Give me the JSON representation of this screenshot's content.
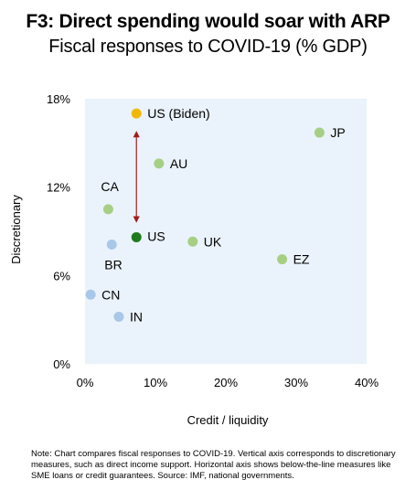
{
  "header": {
    "title": "F3: Direct spending would soar with ARP",
    "subtitle": "Fiscal responses to COVID-19 (% GDP)"
  },
  "chart_data": {
    "type": "scatter",
    "title": "F3: Direct spending would soar with ARP",
    "subtitle": "Fiscal responses to COVID-19 (% GDP)",
    "xlabel": "Credit / liquidity",
    "ylabel": "Discretionary",
    "xlim": [
      0,
      40
    ],
    "ylim": [
      0,
      18
    ],
    "xticks": [
      "0%",
      "10%",
      "20%",
      "30%",
      "40%"
    ],
    "yticks": [
      "0%",
      "6%",
      "12%",
      "18%"
    ],
    "grid": false,
    "plot_background": "#eaf3fb",
    "points": [
      {
        "label": "US (Biden)",
        "x": 7.3,
        "y": 17.0,
        "color": "#f2b800"
      },
      {
        "label": "JP",
        "x": 33.3,
        "y": 15.7,
        "color": "#a6cf84"
      },
      {
        "label": "AU",
        "x": 10.5,
        "y": 13.6,
        "color": "#a6cf84"
      },
      {
        "label": "CA",
        "x": 3.3,
        "y": 10.5,
        "color": "#a6cf84"
      },
      {
        "label": "US",
        "x": 7.3,
        "y": 8.6,
        "color": "#1e7a1e"
      },
      {
        "label": "UK",
        "x": 15.3,
        "y": 8.3,
        "color": "#a6cf84"
      },
      {
        "label": "BR",
        "x": 3.8,
        "y": 8.1,
        "color": "#a9c7e8"
      },
      {
        "label": "EZ",
        "x": 28.0,
        "y": 7.1,
        "color": "#a6cf84"
      },
      {
        "label": "CN",
        "x": 0.8,
        "y": 4.7,
        "color": "#a9c7e8"
      },
      {
        "label": "IN",
        "x": 4.8,
        "y": 3.2,
        "color": "#a9c7e8"
      }
    ],
    "annotations": [
      {
        "type": "double-arrow",
        "x": 7.3,
        "y_from": 9.8,
        "y_to": 15.6,
        "color": "#a01c1c"
      }
    ]
  },
  "footer": {
    "note": "Note: Chart compares fiscal responses to COVID-19. Vertical axis corresponds to discretionary measures, such as direct income support. Horizontal axis shows below-the-line measures like SME loans or credit guarantees. Source: IMF, national governments."
  }
}
